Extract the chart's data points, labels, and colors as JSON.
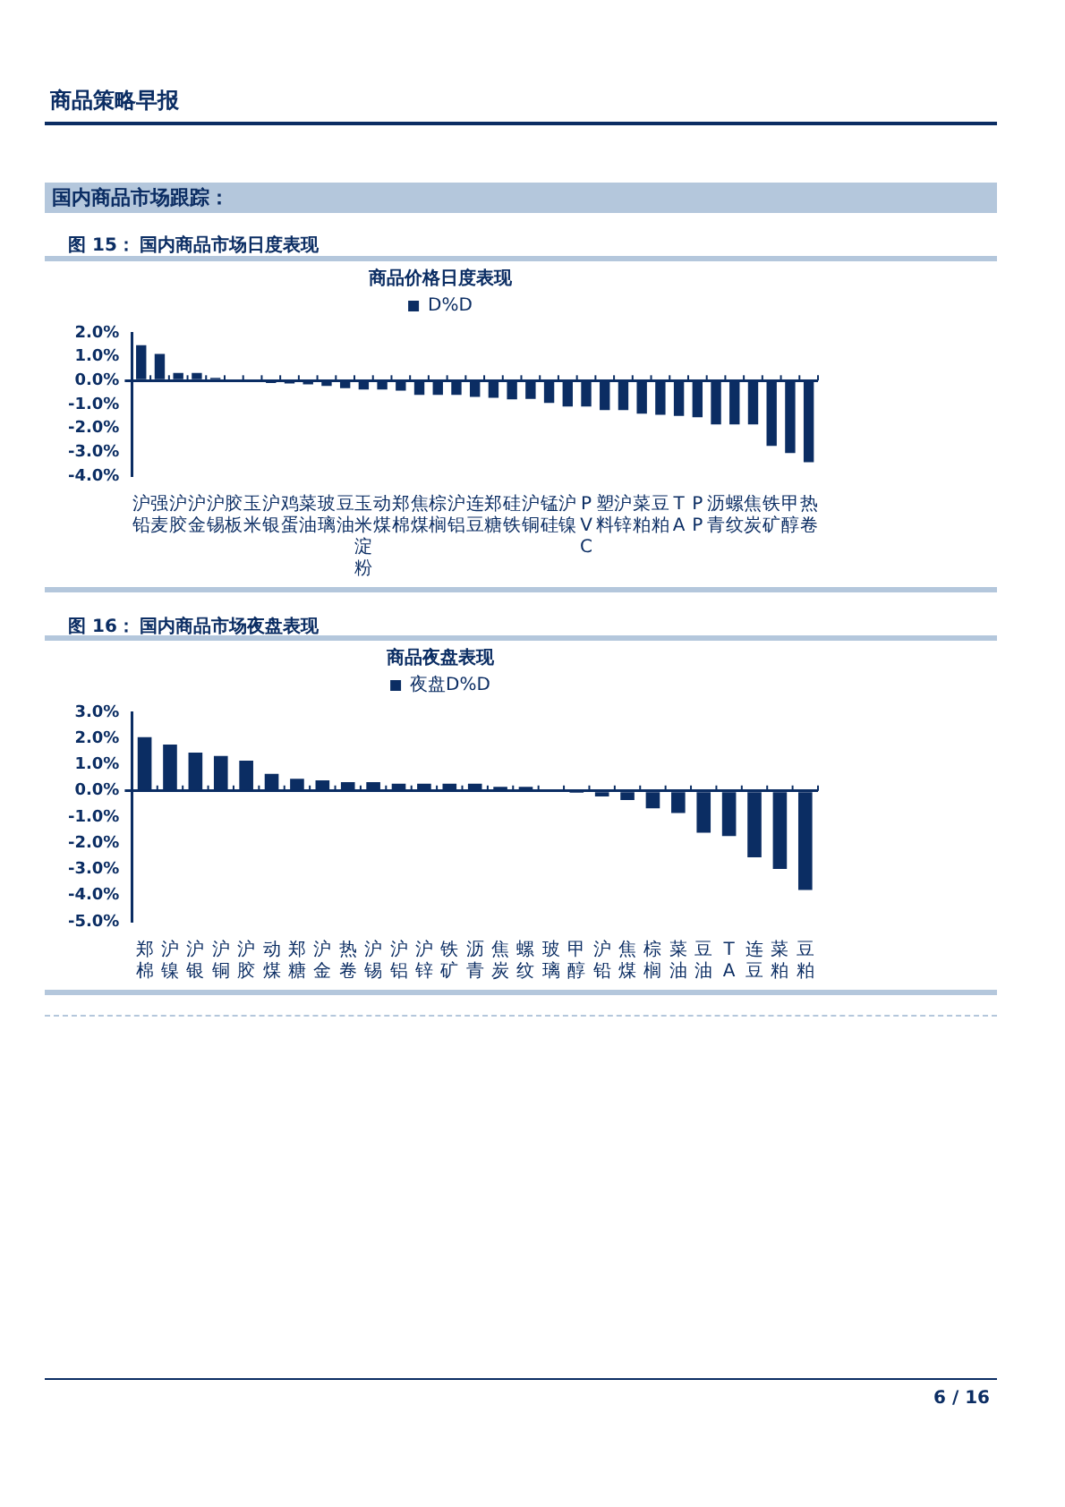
{
  "chart_data": [
    {
      "type": "bar",
      "title": "商品价格日度表现",
      "annotations": [
        "商品策略早报",
        "国内商品市场跟踪：",
        "图 15：",
        "国内商品市场日度表现"
      ],
      "categories": [
        "沪铅",
        "强麦",
        "沪胶",
        "沪金",
        "沪锡",
        "胶板",
        "玉米",
        "沪银",
        "鸡蛋",
        "菜油",
        "玻璃",
        "豆油",
        "玉米淀粉",
        "动煤",
        "郑棉",
        "焦煤",
        "棕榈",
        "沪铝",
        "连豆",
        "郑糖",
        "硅铁",
        "沪铜",
        "锰硅",
        "沪镍",
        "PVC",
        "塑料",
        "沪锌",
        "菜粕",
        "豆粕",
        "TA",
        "PP",
        "沥青",
        "螺纹",
        "焦炭",
        "铁矿",
        "甲醇",
        "热卷"
      ],
      "series": [
        {
          "name": "D%D",
          "color": "#0b2d63",
          "values": [
            1.48,
            1.12,
            0.32,
            0.32,
            0.12,
            0,
            -0.06,
            -0.1,
            -0.12,
            -0.16,
            -0.22,
            -0.32,
            -0.37,
            -0.37,
            -0.42,
            -0.6,
            -0.6,
            -0.6,
            -0.68,
            -0.72,
            -0.78,
            -0.77,
            -0.93,
            -1.08,
            -1.08,
            -1.23,
            -1.23,
            -1.38,
            -1.43,
            -1.48,
            -1.53,
            -1.83,
            -1.83,
            -1.83,
            -2.73,
            -3.03,
            -3.42
          ]
        }
      ],
      "ylim": [
        -4,
        2
      ],
      "yticks": [
        {
          "value": -4,
          "label": "-4.0%"
        },
        {
          "value": -3,
          "label": "-3.0%"
        },
        {
          "value": -2,
          "label": "-2.0%"
        },
        {
          "value": -1,
          "label": "-1.0%"
        },
        {
          "value": 0,
          "label": "0.0%"
        },
        {
          "value": 1,
          "label": "1.0%"
        },
        {
          "value": 2,
          "label": "2.0%"
        }
      ],
      "legend": "top"
    },
    {
      "type": "bar",
      "title": "商品夜盘表现",
      "annotations": [
        "图 16：",
        "国内商品市场夜盘表现",
        "6 / 16"
      ],
      "categories": [
        "郑棉",
        "沪镍",
        "沪银",
        "沪铜",
        "沪胶",
        "动煤",
        "郑糖",
        "沪金",
        "热卷",
        "沪锡",
        "沪铝",
        "沪锌",
        "铁矿",
        "沥青",
        "焦炭",
        "螺纹",
        "玻璃",
        "甲醇",
        "沪铅",
        "焦煤",
        "棕榈",
        "菜油",
        "豆油",
        "TA",
        "连豆",
        "菜粕",
        "豆粕"
      ],
      "series": [
        {
          "name": "夜盘D%D",
          "color": "#0b2d63",
          "values": [
            2.05,
            1.77,
            1.46,
            1.33,
            1.15,
            0.65,
            0.46,
            0.4,
            0.33,
            0.33,
            0.27,
            0.27,
            0.27,
            0.27,
            0.15,
            0.15,
            0,
            -0.08,
            -0.21,
            -0.35,
            -0.67,
            -0.85,
            -1.6,
            -1.73,
            -2.54,
            -2.98,
            -3.79
          ]
        }
      ],
      "ylim": [
        -5,
        3
      ],
      "yticks": [
        {
          "value": -5,
          "label": "-5.0%"
        },
        {
          "value": -4,
          "label": "-4.0%"
        },
        {
          "value": -3,
          "label": "-3.0%"
        },
        {
          "value": -2,
          "label": "-2.0%"
        },
        {
          "value": -1,
          "label": "-1.0%"
        },
        {
          "value": 0,
          "label": "0.0%"
        },
        {
          "value": 1,
          "label": "1.0%"
        },
        {
          "value": 2,
          "label": "2.0%"
        },
        {
          "value": 3,
          "label": "3.0%"
        }
      ],
      "legend": "top"
    }
  ]
}
